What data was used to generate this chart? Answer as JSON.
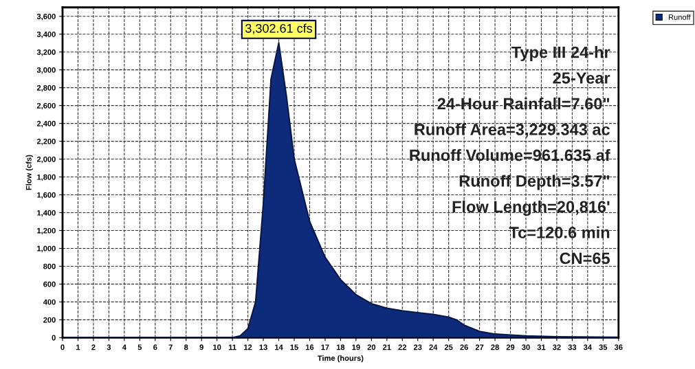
{
  "chart_data": {
    "type": "area",
    "xlabel": "Time (hours)",
    "ylabel": "Flow (cfs)",
    "x": [
      0,
      11,
      11.5,
      12,
      12.5,
      13,
      13.5,
      14,
      14.5,
      15,
      16,
      17,
      18,
      19,
      20,
      21,
      22,
      23,
      24,
      25,
      25.5,
      26,
      27,
      28,
      30,
      32,
      36
    ],
    "series": [
      {
        "name": "Runoff",
        "color": "#0d2b7a",
        "values": [
          0,
          0,
          20,
          100,
          400,
          1500,
          2900,
          3302.61,
          2700,
          2000,
          1300,
          900,
          650,
          480,
          380,
          330,
          300,
          280,
          260,
          230,
          200,
          140,
          70,
          40,
          20,
          10,
          5
        ]
      }
    ],
    "annotations": [
      {
        "text": "3,302.61 cfs",
        "x": 14,
        "y": 3302.61
      },
      "Type III 24-hr",
      "25-Year",
      "24-Hour Rainfall=7.60\"",
      "Runoff Area=3,229.343 ac",
      "Runoff Volume=961.635 af",
      "Runoff Depth=3.57\"",
      "Flow Length=20,816'",
      "Tc=120.6 min",
      "CN=65"
    ],
    "xlim": [
      0,
      36
    ],
    "xticks": [
      0,
      1,
      2,
      3,
      4,
      5,
      6,
      7,
      8,
      9,
      10,
      11,
      12,
      13,
      14,
      15,
      16,
      17,
      18,
      19,
      20,
      21,
      22,
      23,
      24,
      25,
      26,
      27,
      28,
      29,
      30,
      31,
      32,
      33,
      34,
      35,
      36
    ],
    "ylim": [
      0,
      3700
    ],
    "yticks": [
      0,
      200,
      400,
      600,
      800,
      {
        "value": 1000,
        "label": "1,000"
      },
      {
        "value": 1200,
        "label": "1,200"
      },
      {
        "value": 1400,
        "label": "1,400"
      },
      {
        "value": 1600,
        "label": "1,600"
      },
      {
        "value": 1800,
        "label": "1,800"
      },
      {
        "value": 2000,
        "label": "2,000"
      },
      {
        "value": 2200,
        "label": "2,200"
      },
      {
        "value": 2400,
        "label": "2,400"
      },
      {
        "value": 2600,
        "label": "2,600"
      },
      {
        "value": 2800,
        "label": "2,800"
      },
      {
        "value": 3000,
        "label": "3,000"
      },
      {
        "value": 3200,
        "label": "3,200"
      },
      {
        "value": 3400,
        "label": "3,400"
      },
      {
        "value": 3600,
        "label": "3,600"
      }
    ],
    "grid": true,
    "legend": "top right",
    "line_style": "dashed"
  }
}
